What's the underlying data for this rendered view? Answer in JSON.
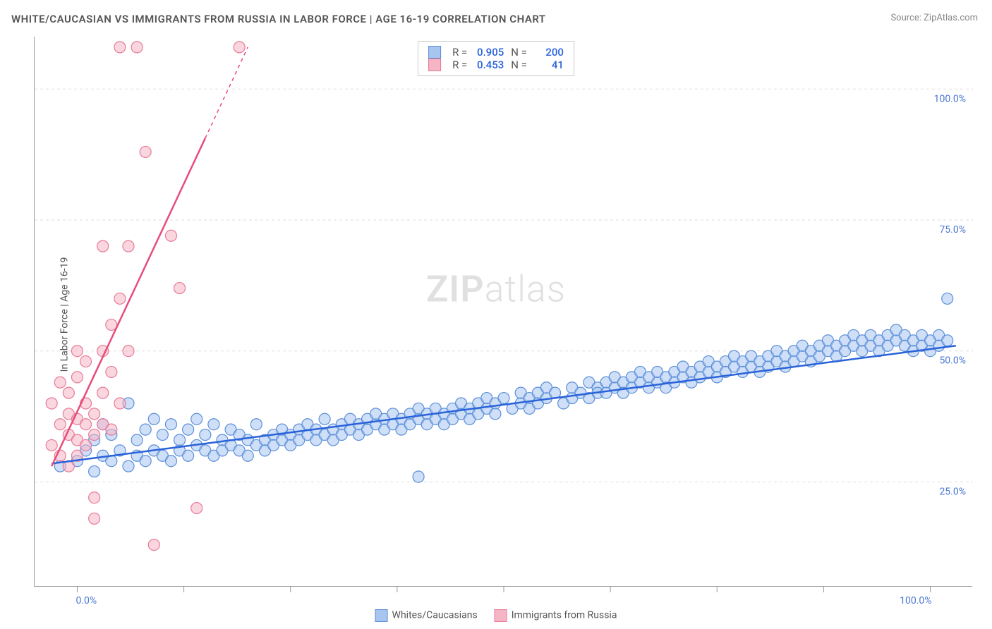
{
  "title": "WHITE/CAUCASIAN VS IMMIGRANTS FROM RUSSIA IN LABOR FORCE | AGE 16-19 CORRELATION CHART",
  "source_label": "Source:",
  "source_value": "ZipAtlas.com",
  "y_axis_label": "In Labor Force | Age 16-19",
  "watermark_bold": "ZIP",
  "watermark_light": "atlas",
  "chart": {
    "type": "scatter",
    "background_color": "#ffffff",
    "grid_color": "#dddddd",
    "axis_color": "#999999",
    "text_color": "#555555",
    "value_color": "#4a76d4",
    "xlim": [
      -5,
      105
    ],
    "ylim": [
      5,
      110
    ],
    "y_ticks": [
      {
        "v": 25.0,
        "label": "25.0%"
      },
      {
        "v": 50.0,
        "label": "50.0%"
      },
      {
        "v": 75.0,
        "label": "75.0%"
      },
      {
        "v": 100.0,
        "label": "100.0%"
      }
    ],
    "x_tick_positions": [
      0,
      12.5,
      25,
      37.5,
      50,
      62.5,
      75,
      87.5,
      100
    ],
    "x_labels": [
      {
        "v": 0,
        "label": "0.0%"
      },
      {
        "v": 100,
        "label": "100.0%"
      }
    ],
    "marker_radius": 8,
    "marker_stroke_width": 1.2,
    "line_width": 2.5,
    "series": [
      {
        "name": "Whites/Caucasians",
        "fill": "#a8c5f0",
        "stroke": "#5b8fd9",
        "fill_opacity": 0.55,
        "trend": {
          "x1": -3,
          "y1": 28.5,
          "x2": 103,
          "y2": 51.0,
          "color": "#2962d9"
        },
        "stats": {
          "R": "0.905",
          "N": "200"
        },
        "points": [
          [
            -2,
            28
          ],
          [
            0,
            29
          ],
          [
            1,
            31
          ],
          [
            2,
            33
          ],
          [
            2,
            27
          ],
          [
            3,
            30
          ],
          [
            3,
            36
          ],
          [
            4,
            29
          ],
          [
            4,
            34
          ],
          [
            5,
            31
          ],
          [
            6,
            28
          ],
          [
            6,
            40
          ],
          [
            7,
            30
          ],
          [
            7,
            33
          ],
          [
            8,
            29
          ],
          [
            8,
            35
          ],
          [
            9,
            31
          ],
          [
            9,
            37
          ],
          [
            10,
            30
          ],
          [
            10,
            34
          ],
          [
            11,
            29
          ],
          [
            11,
            36
          ],
          [
            12,
            31
          ],
          [
            12,
            33
          ],
          [
            13,
            30
          ],
          [
            13,
            35
          ],
          [
            14,
            32
          ],
          [
            14,
            37
          ],
          [
            15,
            31
          ],
          [
            15,
            34
          ],
          [
            16,
            30
          ],
          [
            16,
            36
          ],
          [
            17,
            33
          ],
          [
            17,
            31
          ],
          [
            18,
            32
          ],
          [
            18,
            35
          ],
          [
            19,
            31
          ],
          [
            19,
            34
          ],
          [
            20,
            33
          ],
          [
            20,
            30
          ],
          [
            21,
            32
          ],
          [
            21,
            36
          ],
          [
            22,
            33
          ],
          [
            22,
            31
          ],
          [
            23,
            34
          ],
          [
            23,
            32
          ],
          [
            24,
            33
          ],
          [
            24,
            35
          ],
          [
            25,
            34
          ],
          [
            25,
            32
          ],
          [
            26,
            35
          ],
          [
            26,
            33
          ],
          [
            27,
            34
          ],
          [
            27,
            36
          ],
          [
            28,
            35
          ],
          [
            28,
            33
          ],
          [
            29,
            34
          ],
          [
            29,
            37
          ],
          [
            30,
            35
          ],
          [
            30,
            33
          ],
          [
            31,
            36
          ],
          [
            31,
            34
          ],
          [
            32,
            35
          ],
          [
            32,
            37
          ],
          [
            33,
            36
          ],
          [
            33,
            34
          ],
          [
            34,
            37
          ],
          [
            34,
            35
          ],
          [
            35,
            36
          ],
          [
            35,
            38
          ],
          [
            36,
            37
          ],
          [
            36,
            35
          ],
          [
            37,
            36
          ],
          [
            37,
            38
          ],
          [
            38,
            37
          ],
          [
            38,
            35
          ],
          [
            39,
            38
          ],
          [
            39,
            36
          ],
          [
            40,
            37
          ],
          [
            40,
            39
          ],
          [
            40,
            26
          ],
          [
            41,
            38
          ],
          [
            41,
            36
          ],
          [
            42,
            37
          ],
          [
            42,
            39
          ],
          [
            43,
            38
          ],
          [
            43,
            36
          ],
          [
            44,
            39
          ],
          [
            44,
            37
          ],
          [
            45,
            38
          ],
          [
            45,
            40
          ],
          [
            46,
            39
          ],
          [
            46,
            37
          ],
          [
            47,
            40
          ],
          [
            47,
            38
          ],
          [
            48,
            39
          ],
          [
            48,
            41
          ],
          [
            49,
            40
          ],
          [
            49,
            38
          ],
          [
            50,
            41
          ],
          [
            51,
            39
          ],
          [
            52,
            40
          ],
          [
            52,
            42
          ],
          [
            53,
            41
          ],
          [
            53,
            39
          ],
          [
            54,
            42
          ],
          [
            54,
            40
          ],
          [
            55,
            41
          ],
          [
            55,
            43
          ],
          [
            56,
            42
          ],
          [
            57,
            40
          ],
          [
            58,
            41
          ],
          [
            58,
            43
          ],
          [
            59,
            42
          ],
          [
            60,
            44
          ],
          [
            60,
            41
          ],
          [
            61,
            43
          ],
          [
            61,
            42
          ],
          [
            62,
            44
          ],
          [
            62,
            42
          ],
          [
            63,
            43
          ],
          [
            63,
            45
          ],
          [
            64,
            44
          ],
          [
            64,
            42
          ],
          [
            65,
            45
          ],
          [
            65,
            43
          ],
          [
            66,
            44
          ],
          [
            66,
            46
          ],
          [
            67,
            45
          ],
          [
            67,
            43
          ],
          [
            68,
            44
          ],
          [
            68,
            46
          ],
          [
            69,
            45
          ],
          [
            69,
            43
          ],
          [
            70,
            46
          ],
          [
            70,
            44
          ],
          [
            71,
            45
          ],
          [
            71,
            47
          ],
          [
            72,
            46
          ],
          [
            72,
            44
          ],
          [
            73,
            47
          ],
          [
            73,
            45
          ],
          [
            74,
            46
          ],
          [
            74,
            48
          ],
          [
            75,
            47
          ],
          [
            75,
            45
          ],
          [
            76,
            48
          ],
          [
            76,
            46
          ],
          [
            77,
            47
          ],
          [
            77,
            49
          ],
          [
            78,
            48
          ],
          [
            78,
            46
          ],
          [
            79,
            47
          ],
          [
            79,
            49
          ],
          [
            80,
            48
          ],
          [
            80,
            46
          ],
          [
            81,
            49
          ],
          [
            81,
            47
          ],
          [
            82,
            48
          ],
          [
            82,
            50
          ],
          [
            83,
            49
          ],
          [
            83,
            47
          ],
          [
            84,
            50
          ],
          [
            84,
            48
          ],
          [
            85,
            49
          ],
          [
            85,
            51
          ],
          [
            86,
            50
          ],
          [
            86,
            48
          ],
          [
            87,
            49
          ],
          [
            87,
            51
          ],
          [
            88,
            50
          ],
          [
            88,
            52
          ],
          [
            89,
            51
          ],
          [
            89,
            49
          ],
          [
            90,
            50
          ],
          [
            90,
            52
          ],
          [
            91,
            51
          ],
          [
            91,
            53
          ],
          [
            92,
            50
          ],
          [
            92,
            52
          ],
          [
            93,
            51
          ],
          [
            93,
            53
          ],
          [
            94,
            52
          ],
          [
            94,
            50
          ],
          [
            95,
            53
          ],
          [
            95,
            51
          ],
          [
            96,
            52
          ],
          [
            96,
            54
          ],
          [
            97,
            51
          ],
          [
            97,
            53
          ],
          [
            98,
            52
          ],
          [
            98,
            50
          ],
          [
            99,
            53
          ],
          [
            99,
            51
          ],
          [
            100,
            52
          ],
          [
            100,
            50
          ],
          [
            101,
            53
          ],
          [
            101,
            51
          ],
          [
            102,
            52
          ],
          [
            102,
            60
          ]
        ]
      },
      {
        "name": "Immigrants from Russia",
        "fill": "#f5b5c5",
        "stroke": "#e77a9a",
        "fill_opacity": 0.55,
        "trend": {
          "x1": -3,
          "y1": 28,
          "x2": 20,
          "y2": 108,
          "color": "#e84c7a",
          "dash_from_x": 15
        },
        "stats": {
          "R": "0.453",
          "N": "41"
        },
        "points": [
          [
            -3,
            32
          ],
          [
            -3,
            40
          ],
          [
            -2,
            30
          ],
          [
            -2,
            36
          ],
          [
            -2,
            44
          ],
          [
            -1,
            28
          ],
          [
            -1,
            34
          ],
          [
            -1,
            38
          ],
          [
            -1,
            42
          ],
          [
            0,
            30
          ],
          [
            0,
            33
          ],
          [
            0,
            37
          ],
          [
            0,
            45
          ],
          [
            0,
            50
          ],
          [
            1,
            32
          ],
          [
            1,
            36
          ],
          [
            1,
            40
          ],
          [
            1,
            48
          ],
          [
            2,
            34
          ],
          [
            2,
            38
          ],
          [
            2,
            22
          ],
          [
            2,
            18
          ],
          [
            3,
            36
          ],
          [
            3,
            42
          ],
          [
            3,
            50
          ],
          [
            3,
            70
          ],
          [
            4,
            35
          ],
          [
            4,
            46
          ],
          [
            4,
            55
          ],
          [
            5,
            40
          ],
          [
            5,
            60
          ],
          [
            5,
            108
          ],
          [
            6,
            50
          ],
          [
            6,
            70
          ],
          [
            7,
            108
          ],
          [
            8,
            88
          ],
          [
            9,
            13
          ],
          [
            11,
            72
          ],
          [
            12,
            62
          ],
          [
            14,
            20
          ],
          [
            19,
            108
          ]
        ]
      }
    ]
  },
  "bottom_legend": [
    {
      "label": "Whites/Caucasians",
      "fill": "#a8c5f0",
      "stroke": "#5b8fd9"
    },
    {
      "label": "Immigrants from Russia",
      "fill": "#f5b5c5",
      "stroke": "#e77a9a"
    }
  ],
  "top_legend_labels": {
    "R": "R =",
    "N": "N ="
  }
}
